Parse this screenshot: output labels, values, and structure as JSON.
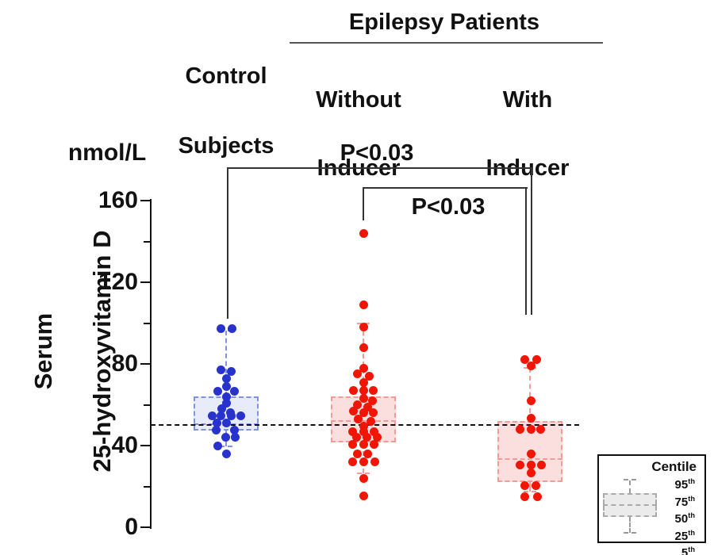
{
  "figure": {
    "unit_label": "nmol/L",
    "y_axis_title_line1": "Serum",
    "y_axis_title_line2": "25-hydroxyvitamin D"
  },
  "headers": {
    "control_line1": "Control",
    "control_line2": "Subjects",
    "epilepsy": "Epilepsy Patients",
    "without_line1": "Without",
    "without_line2": "Inducer",
    "with_line1": "With",
    "with_line2": "Inducer"
  },
  "annotations": {
    "p_control_vs_with": "P<0.03",
    "p_without_vs_with": "P<0.03"
  },
  "legend": {
    "title": "Centile",
    "items": [
      {
        "value": "95",
        "suffix": "th"
      },
      {
        "value": "75",
        "suffix": "th"
      },
      {
        "value": "50",
        "suffix": "th"
      },
      {
        "value": "25",
        "suffix": "th"
      },
      {
        "value": "5",
        "suffix": "th"
      }
    ]
  },
  "colors": {
    "control_dot": "#2832cc",
    "control_fill": "#e7ebfa",
    "control_border": "#8093df",
    "patient_dot": "#f01505",
    "patient_fill": "#fbdfdf",
    "patient_border": "#f59a94",
    "axis": "#111111",
    "reference_line": "#111111",
    "bracket": "#333333"
  },
  "chart_data": {
    "type": "box-scatter",
    "title": "",
    "ylabel": "Serum 25-hydroxyvitamin D (nmol/L)",
    "ylim": [
      0,
      160
    ],
    "yticks_major": [
      0,
      40,
      80,
      120,
      160
    ],
    "yticks_minor": [
      20,
      60,
      100,
      140
    ],
    "reference_line_value": 50,
    "grid": false,
    "legend_position": "bottom-right",
    "box_centiles": [
      "95th",
      "75th",
      "50th",
      "25th",
      "5th"
    ],
    "groups": [
      {
        "name": "Control Subjects",
        "color_key": "control",
        "n": 24,
        "box": {
          "p95": 96.5,
          "p75": 64,
          "p50": 50.5,
          "p25": 47.5,
          "p5": 39.5
        },
        "points": [
          [
            -7,
            97.5
          ],
          [
            7,
            97.5
          ],
          [
            -7,
            77
          ],
          [
            6,
            76.5
          ],
          [
            0,
            73
          ],
          [
            0,
            69
          ],
          [
            -11,
            66.5
          ],
          [
            10,
            66.5
          ],
          [
            0,
            64
          ],
          [
            0,
            61
          ],
          [
            -6,
            58
          ],
          [
            5,
            56
          ],
          [
            -18,
            54.5
          ],
          [
            -7,
            54.5
          ],
          [
            6,
            54.5
          ],
          [
            18,
            54.5
          ],
          [
            -12,
            51
          ],
          [
            0,
            51
          ],
          [
            -13,
            47.5
          ],
          [
            10,
            47.5
          ],
          [
            -1,
            44
          ],
          [
            11,
            44
          ],
          [
            -11,
            40
          ],
          [
            0,
            36
          ]
        ]
      },
      {
        "name": "Epilepsy Patients Without Inducer",
        "color_key": "patient",
        "n": 37,
        "box": {
          "p95": 100,
          "p75": 64,
          "p50": 52,
          "p25": 41.5,
          "p5": 26.5
        },
        "points": [
          [
            0,
            144
          ],
          [
            0,
            109
          ],
          [
            0,
            98
          ],
          [
            0,
            88
          ],
          [
            0,
            78
          ],
          [
            -8,
            75
          ],
          [
            7,
            74
          ],
          [
            0,
            71
          ],
          [
            -13,
            67
          ],
          [
            0,
            67
          ],
          [
            12,
            67
          ],
          [
            0,
            63
          ],
          [
            11,
            62
          ],
          [
            -8,
            60
          ],
          [
            5,
            59
          ],
          [
            -13,
            57
          ],
          [
            0,
            56
          ],
          [
            12,
            56
          ],
          [
            -7,
            53
          ],
          [
            9,
            52
          ],
          [
            0,
            49.5
          ],
          [
            -14,
            47
          ],
          [
            0,
            47
          ],
          [
            13,
            47
          ],
          [
            -9,
            44
          ],
          [
            4,
            44
          ],
          [
            17,
            44
          ],
          [
            -14,
            40.5
          ],
          [
            0,
            40.5
          ],
          [
            13,
            40.5
          ],
          [
            -8,
            36
          ],
          [
            5,
            36
          ],
          [
            -14,
            32
          ],
          [
            0,
            32
          ],
          [
            14,
            32
          ],
          [
            0,
            24
          ],
          [
            0,
            15.5
          ]
        ]
      },
      {
        "name": "Epilepsy Patients With Inducer",
        "color_key": "patient",
        "n": 17,
        "box": {
          "p95": 78,
          "p75": 52,
          "p50": 33.5,
          "p25": 22,
          "p5": 17.5
        },
        "points": [
          [
            -7,
            82
          ],
          [
            8,
            82
          ],
          [
            1,
            79
          ],
          [
            1,
            62
          ],
          [
            1,
            53.5
          ],
          [
            -13,
            48
          ],
          [
            1,
            48
          ],
          [
            13,
            48
          ],
          [
            1,
            36
          ],
          [
            -13,
            30.5
          ],
          [
            1,
            30.5
          ],
          [
            14,
            30.5
          ],
          [
            1,
            26.5
          ],
          [
            -7,
            20.5
          ],
          [
            7,
            20.5
          ],
          [
            -7,
            15
          ],
          [
            9,
            15
          ]
        ]
      }
    ],
    "significance": [
      {
        "between": [
          "Control Subjects",
          "Epilepsy Patients With Inducer"
        ],
        "label": "P<0.03"
      },
      {
        "between": [
          "Epilepsy Patients Without Inducer",
          "Epilepsy Patients With Inducer"
        ],
        "label": "P<0.03"
      }
    ]
  }
}
